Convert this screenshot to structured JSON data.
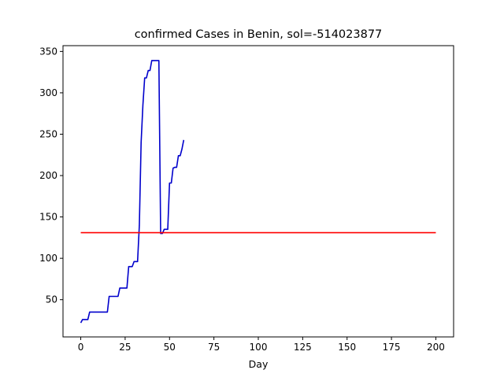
{
  "chart_data": {
    "type": "line",
    "title": "confirmed Cases in Benin, sol=-514023877",
    "xlabel": "Day",
    "ylabel": "",
    "xlim": [
      -10,
      210
    ],
    "ylim": [
      5,
      357
    ],
    "xticks": [
      0,
      25,
      50,
      75,
      100,
      125,
      150,
      175,
      200
    ],
    "yticks": [
      50,
      100,
      150,
      200,
      250,
      300,
      350
    ],
    "grid": false,
    "legend": "none",
    "series": [
      {
        "color": "#0000cc",
        "x": [
          0,
          1,
          2,
          3,
          4,
          5,
          6,
          7,
          8,
          9,
          10,
          11,
          12,
          13,
          14,
          15,
          16,
          17,
          18,
          19,
          20,
          21,
          22,
          23,
          24,
          25,
          26,
          27,
          28,
          29,
          30,
          31,
          32,
          33,
          34,
          35,
          36,
          37,
          38,
          39,
          40,
          41,
          42,
          43,
          44,
          45,
          46,
          47,
          48,
          49,
          50,
          51,
          52,
          53,
          54,
          55,
          56,
          57,
          58
        ],
        "y": [
          22,
          26,
          26,
          26,
          26,
          35,
          35,
          35,
          35,
          35,
          35,
          35,
          35,
          35,
          35,
          35,
          54,
          54,
          54,
          54,
          54,
          54,
          64,
          64,
          64,
          64,
          64,
          90,
          90,
          90,
          96,
          96,
          96,
          140,
          240,
          285,
          318,
          318,
          327,
          327,
          339,
          339,
          339,
          339,
          339,
          130,
          130,
          135,
          135,
          135,
          191,
          191,
          209,
          210,
          210,
          224,
          224,
          232,
          243
        ]
      },
      {
        "color": "#ff0000",
        "x": [
          0,
          200
        ],
        "y": [
          131,
          131
        ]
      }
    ]
  }
}
